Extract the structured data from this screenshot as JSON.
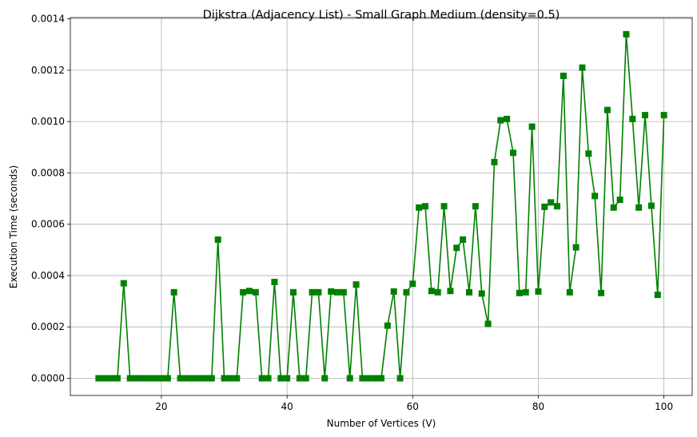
{
  "chart_data": {
    "type": "line",
    "title": "Dijkstra (Adjacency List) - Small Graph Medium (density=0.5)",
    "xlabel": "Number of Vertices (V)",
    "ylabel": "Execution Time (seconds)",
    "xlim": [
      5.5,
      104.5
    ],
    "ylim": [
      -6.7e-05,
      0.001405
    ],
    "grid": true,
    "marker": "square",
    "color": "#008000",
    "x_ticks": [
      20,
      40,
      60,
      80,
      100
    ],
    "x_tick_labels": [
      "20",
      "40",
      "60",
      "80",
      "100"
    ],
    "y_ticks": [
      0,
      0.0002,
      0.0004,
      0.0006,
      0.0008,
      0.001,
      0.0012,
      0.0014
    ],
    "y_tick_labels": [
      "0.0000",
      "0.0002",
      "0.0004",
      "0.0006",
      "0.0008",
      "0.0010",
      "0.0012",
      "0.0014"
    ],
    "series": [
      {
        "x": [
          10,
          11,
          12,
          13,
          14,
          15,
          16,
          17,
          18,
          19,
          20,
          21,
          22,
          23,
          24,
          25,
          26,
          27,
          28,
          29,
          30,
          31,
          32,
          33,
          34,
          35,
          36,
          37,
          38,
          39,
          40,
          41,
          42,
          43,
          44,
          45,
          46,
          47,
          48,
          49,
          50,
          51,
          52,
          53,
          54,
          55,
          56,
          57,
          58,
          59,
          60,
          61,
          62,
          63,
          64,
          65,
          66,
          67,
          68,
          69,
          70,
          71,
          72,
          73,
          74,
          75,
          76,
          77,
          78,
          79,
          80,
          81,
          82,
          83,
          84,
          85,
          86,
          87,
          88,
          89,
          90,
          91,
          92,
          93,
          94,
          95,
          96,
          97,
          98,
          99,
          100
        ],
        "values": [
          0,
          0,
          0,
          0,
          0.00037,
          0,
          0,
          0,
          0,
          0,
          0,
          0,
          0.000335,
          0,
          0,
          0,
          0,
          0,
          0,
          0.00054,
          0,
          0,
          0,
          0.000335,
          0.00034,
          0.000335,
          0,
          0,
          0.000375,
          0,
          0,
          0.000335,
          0,
          0,
          0.000335,
          0.000335,
          0,
          0.000338,
          0.000335,
          0.000335,
          0,
          0.000365,
          0,
          0,
          0,
          0,
          0.000205,
          0.000338,
          0,
          0.000335,
          0.000368,
          0.000665,
          0.00067,
          0.00034,
          0.000335,
          0.00067,
          0.00034,
          0.000508,
          0.00054,
          0.000335,
          0.00067,
          0.00033,
          0.000212,
          0.000842,
          0.001005,
          0.00101,
          0.000878,
          0.000332,
          0.000335,
          0.00098,
          0.000338,
          0.000668,
          0.000685,
          0.00067,
          0.001178,
          0.000335,
          0.00051,
          0.00121,
          0.000875,
          0.00071,
          0.000332,
          0.001045,
          0.000665,
          0.000695,
          0.00134,
          0.00101,
          0.000665,
          0.001025,
          0.000672,
          0.000325,
          0.001025
        ]
      }
    ]
  }
}
